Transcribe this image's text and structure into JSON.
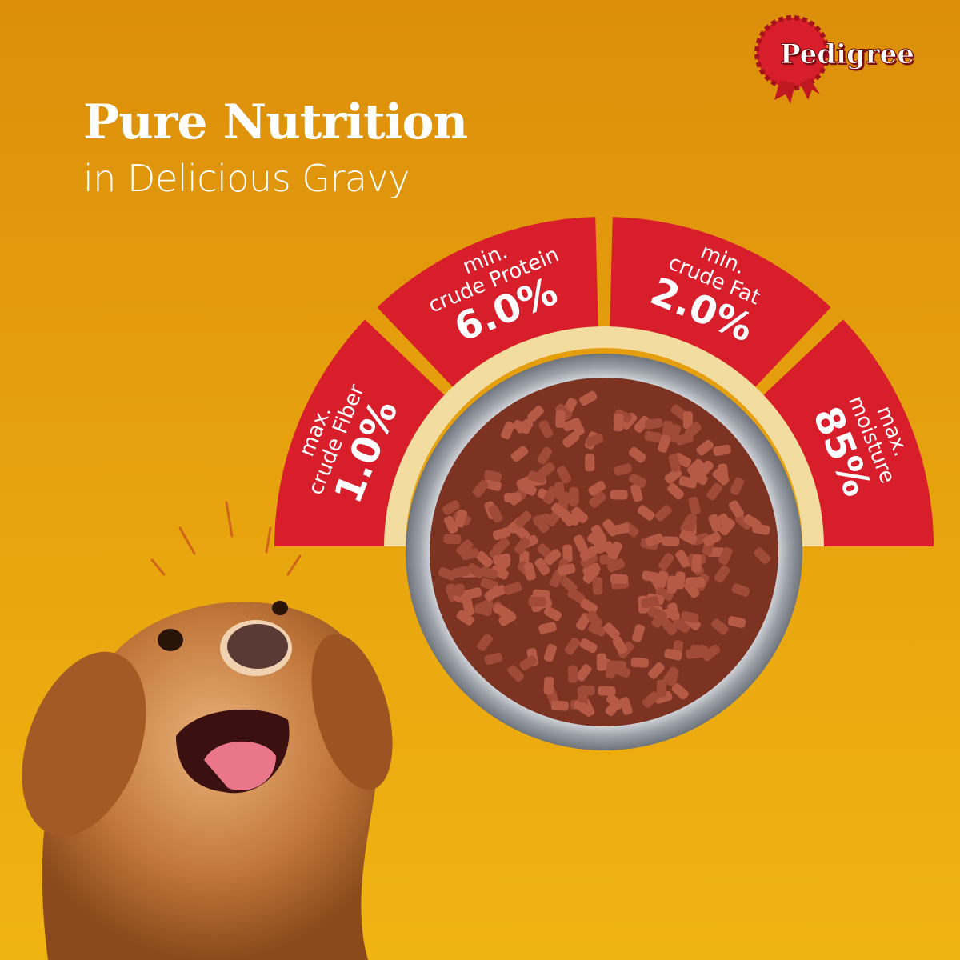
{
  "brand": {
    "logo_text": "Pedigree",
    "color": "#d81e2a"
  },
  "headline": {
    "title": "Pure Nutrition",
    "subtitle": "in Delicious Gravy"
  },
  "nutrients": [
    {
      "qualifier": "max.",
      "name": "crude Fiber",
      "value": "1.0%"
    },
    {
      "qualifier": "min.",
      "name": "crude Protein",
      "value": "6.0%"
    },
    {
      "qualifier": "min.",
      "name": "crude Fat",
      "value": "2.0%"
    },
    {
      "qualifier": "max.",
      "name": "moisture",
      "value": "85%"
    }
  ],
  "colors": {
    "background": "#e6a10e",
    "segment": "#d81e2a",
    "ring": "#f3dca0",
    "food": "#8a3a28",
    "bowl": "#c9ccd2"
  }
}
